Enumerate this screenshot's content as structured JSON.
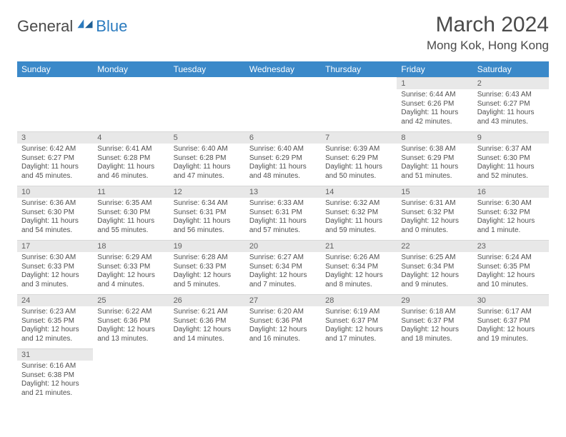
{
  "brand": {
    "part1": "General",
    "part2": "Blue"
  },
  "title": {
    "month_year": "March 2024",
    "location": "Mong Kok, Hong Kong"
  },
  "colors": {
    "header_bg": "#3b89c9",
    "header_text": "#ffffff",
    "daynum_bg": "#e8e8e8",
    "text": "#505050",
    "logo_accent": "#2b7bbf"
  },
  "weekdays": [
    "Sunday",
    "Monday",
    "Tuesday",
    "Wednesday",
    "Thursday",
    "Friday",
    "Saturday"
  ],
  "weeks": [
    [
      {
        "day": null
      },
      {
        "day": null
      },
      {
        "day": null
      },
      {
        "day": null
      },
      {
        "day": null
      },
      {
        "day": 1,
        "sunrise": "6:44 AM",
        "sunset": "6:26 PM",
        "daylight": "11 hours and 42 minutes."
      },
      {
        "day": 2,
        "sunrise": "6:43 AM",
        "sunset": "6:27 PM",
        "daylight": "11 hours and 43 minutes."
      }
    ],
    [
      {
        "day": 3,
        "sunrise": "6:42 AM",
        "sunset": "6:27 PM",
        "daylight": "11 hours and 45 minutes."
      },
      {
        "day": 4,
        "sunrise": "6:41 AM",
        "sunset": "6:28 PM",
        "daylight": "11 hours and 46 minutes."
      },
      {
        "day": 5,
        "sunrise": "6:40 AM",
        "sunset": "6:28 PM",
        "daylight": "11 hours and 47 minutes."
      },
      {
        "day": 6,
        "sunrise": "6:40 AM",
        "sunset": "6:29 PM",
        "daylight": "11 hours and 48 minutes."
      },
      {
        "day": 7,
        "sunrise": "6:39 AM",
        "sunset": "6:29 PM",
        "daylight": "11 hours and 50 minutes."
      },
      {
        "day": 8,
        "sunrise": "6:38 AM",
        "sunset": "6:29 PM",
        "daylight": "11 hours and 51 minutes."
      },
      {
        "day": 9,
        "sunrise": "6:37 AM",
        "sunset": "6:30 PM",
        "daylight": "11 hours and 52 minutes."
      }
    ],
    [
      {
        "day": 10,
        "sunrise": "6:36 AM",
        "sunset": "6:30 PM",
        "daylight": "11 hours and 54 minutes."
      },
      {
        "day": 11,
        "sunrise": "6:35 AM",
        "sunset": "6:30 PM",
        "daylight": "11 hours and 55 minutes."
      },
      {
        "day": 12,
        "sunrise": "6:34 AM",
        "sunset": "6:31 PM",
        "daylight": "11 hours and 56 minutes."
      },
      {
        "day": 13,
        "sunrise": "6:33 AM",
        "sunset": "6:31 PM",
        "daylight": "11 hours and 57 minutes."
      },
      {
        "day": 14,
        "sunrise": "6:32 AM",
        "sunset": "6:32 PM",
        "daylight": "11 hours and 59 minutes."
      },
      {
        "day": 15,
        "sunrise": "6:31 AM",
        "sunset": "6:32 PM",
        "daylight": "12 hours and 0 minutes."
      },
      {
        "day": 16,
        "sunrise": "6:30 AM",
        "sunset": "6:32 PM",
        "daylight": "12 hours and 1 minute."
      }
    ],
    [
      {
        "day": 17,
        "sunrise": "6:30 AM",
        "sunset": "6:33 PM",
        "daylight": "12 hours and 3 minutes."
      },
      {
        "day": 18,
        "sunrise": "6:29 AM",
        "sunset": "6:33 PM",
        "daylight": "12 hours and 4 minutes."
      },
      {
        "day": 19,
        "sunrise": "6:28 AM",
        "sunset": "6:33 PM",
        "daylight": "12 hours and 5 minutes."
      },
      {
        "day": 20,
        "sunrise": "6:27 AM",
        "sunset": "6:34 PM",
        "daylight": "12 hours and 7 minutes."
      },
      {
        "day": 21,
        "sunrise": "6:26 AM",
        "sunset": "6:34 PM",
        "daylight": "12 hours and 8 minutes."
      },
      {
        "day": 22,
        "sunrise": "6:25 AM",
        "sunset": "6:34 PM",
        "daylight": "12 hours and 9 minutes."
      },
      {
        "day": 23,
        "sunrise": "6:24 AM",
        "sunset": "6:35 PM",
        "daylight": "12 hours and 10 minutes."
      }
    ],
    [
      {
        "day": 24,
        "sunrise": "6:23 AM",
        "sunset": "6:35 PM",
        "daylight": "12 hours and 12 minutes."
      },
      {
        "day": 25,
        "sunrise": "6:22 AM",
        "sunset": "6:36 PM",
        "daylight": "12 hours and 13 minutes."
      },
      {
        "day": 26,
        "sunrise": "6:21 AM",
        "sunset": "6:36 PM",
        "daylight": "12 hours and 14 minutes."
      },
      {
        "day": 27,
        "sunrise": "6:20 AM",
        "sunset": "6:36 PM",
        "daylight": "12 hours and 16 minutes."
      },
      {
        "day": 28,
        "sunrise": "6:19 AM",
        "sunset": "6:37 PM",
        "daylight": "12 hours and 17 minutes."
      },
      {
        "day": 29,
        "sunrise": "6:18 AM",
        "sunset": "6:37 PM",
        "daylight": "12 hours and 18 minutes."
      },
      {
        "day": 30,
        "sunrise": "6:17 AM",
        "sunset": "6:37 PM",
        "daylight": "12 hours and 19 minutes."
      }
    ],
    [
      {
        "day": 31,
        "sunrise": "6:16 AM",
        "sunset": "6:38 PM",
        "daylight": "12 hours and 21 minutes."
      },
      {
        "day": null
      },
      {
        "day": null
      },
      {
        "day": null
      },
      {
        "day": null
      },
      {
        "day": null
      },
      {
        "day": null
      }
    ]
  ],
  "labels": {
    "sunrise": "Sunrise:",
    "sunset": "Sunset:",
    "daylight": "Daylight:"
  }
}
